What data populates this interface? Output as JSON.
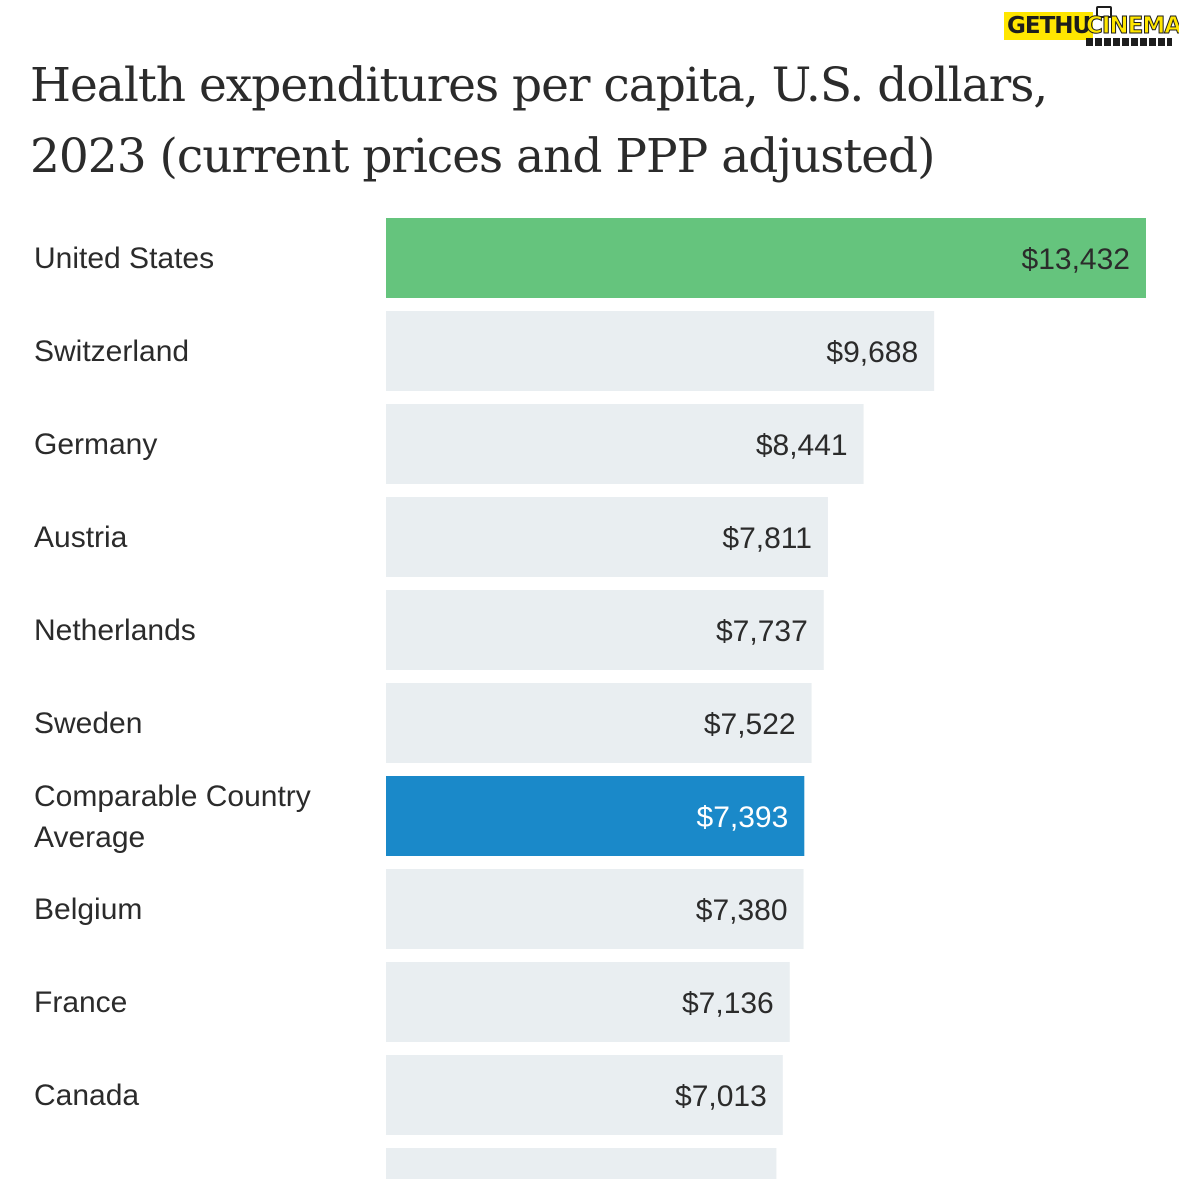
{
  "watermark": {
    "left_text": "GETHU",
    "right_text": "CINEMA"
  },
  "chart_data": {
    "type": "bar",
    "orientation": "horizontal",
    "title": "Health expenditures per capita, U.S. dollars, 2023 (current prices and PPP adjusted)",
    "xlabel": "",
    "ylabel": "",
    "xlim": [
      0,
      13432
    ],
    "grid": false,
    "legend": "none",
    "unit_prefix": "$",
    "categories": [
      "United States",
      "Switzerland",
      "Germany",
      "Austria",
      "Netherlands",
      "Sweden",
      "Comparable Country Average",
      "Belgium",
      "France",
      "Canada",
      ""
    ],
    "values": [
      13432,
      9688,
      8441,
      7811,
      7737,
      7522,
      7393,
      7380,
      7136,
      7013,
      6900
    ],
    "value_labels": [
      "$13,432",
      "$9,688",
      "$8,441",
      "$7,811",
      "$7,737",
      "$7,522",
      "$7,393",
      "$7,380",
      "$7,136",
      "$7,013",
      ""
    ],
    "highlight": {
      "United States": "us",
      "Comparable Country Average": "average"
    },
    "colors": {
      "default_bar": "#e9eef1",
      "us_bar": "#65c47d",
      "average_bar": "#1a89c9",
      "default_value_text": "#2b2b2b",
      "us_value_text": "#2b2b2b",
      "average_value_text": "#ffffff",
      "label_text": "#2b2b2b"
    }
  }
}
